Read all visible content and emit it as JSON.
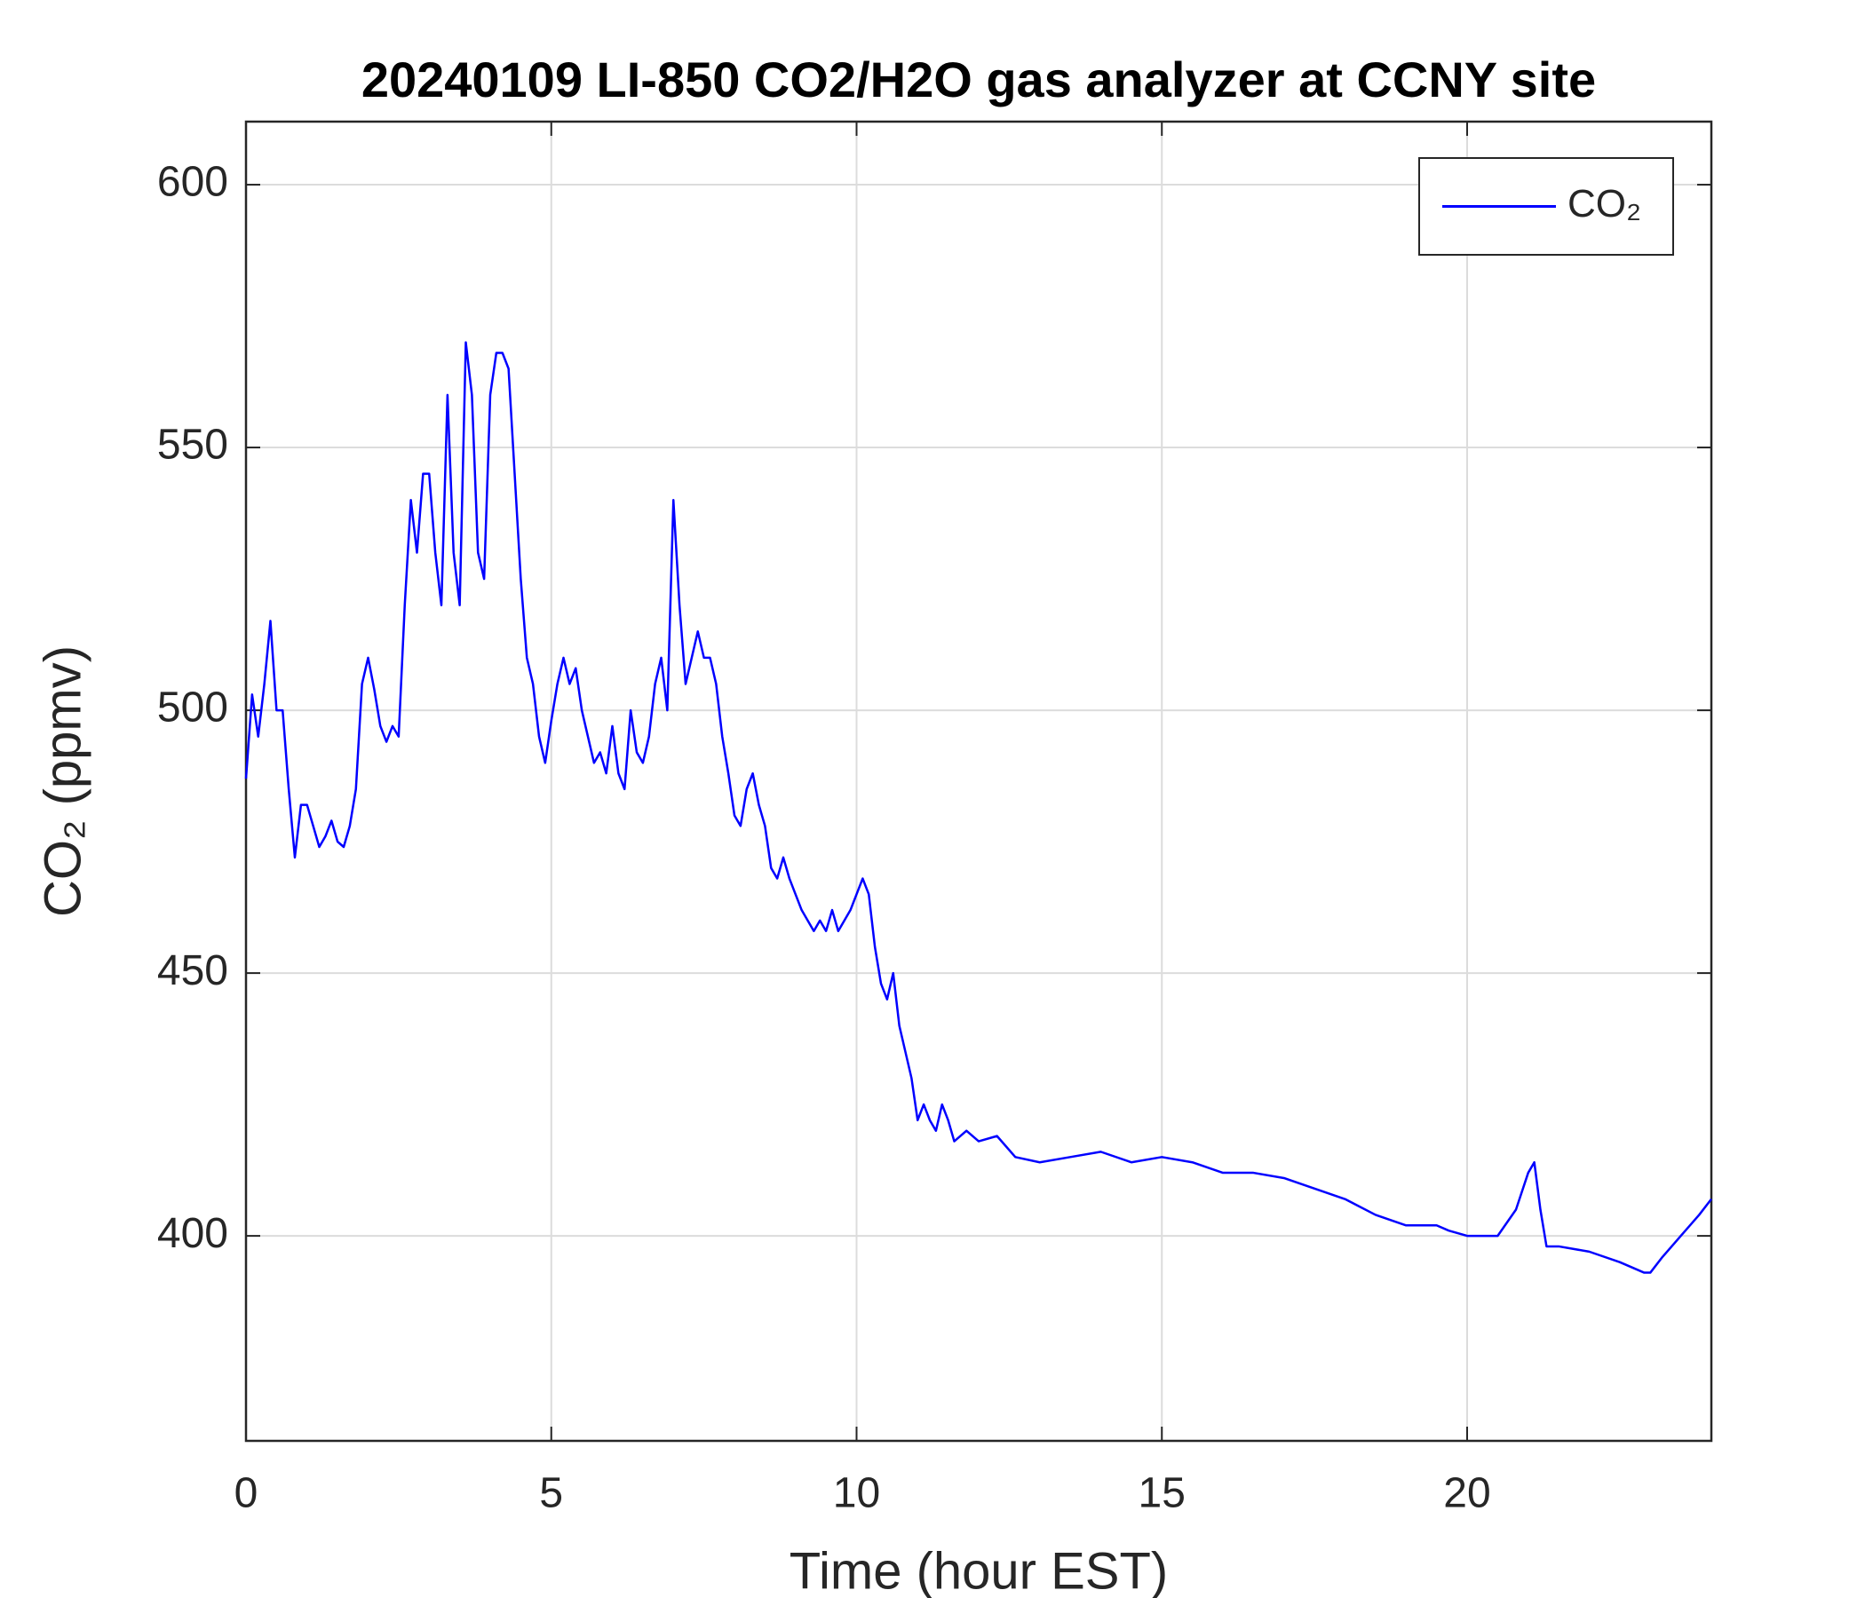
{
  "chart_data": {
    "type": "line",
    "title": "20240109 LI-850 CO2/H2O gas analyzer at CCNY site",
    "x_label": "Time (hour EST)",
    "y_label": "CO₂ (ppmv)",
    "x": [
      0,
      0.1,
      0.2,
      0.3,
      0.4,
      0.5,
      0.6,
      0.7,
      0.8,
      0.9,
      1.0,
      1.1,
      1.2,
      1.3,
      1.4,
      1.5,
      1.6,
      1.7,
      1.8,
      1.9,
      2.0,
      2.1,
      2.2,
      2.3,
      2.4,
      2.5,
      2.6,
      2.7,
      2.8,
      2.9,
      3.0,
      3.1,
      3.2,
      3.3,
      3.4,
      3.5,
      3.6,
      3.7,
      3.8,
      3.9,
      4.0,
      4.1,
      4.2,
      4.3,
      4.4,
      4.5,
      4.6,
      4.7,
      4.8,
      4.9,
      5.0,
      5.1,
      5.2,
      5.3,
      5.4,
      5.5,
      5.6,
      5.7,
      5.8,
      5.9,
      6.0,
      6.1,
      6.2,
      6.3,
      6.4,
      6.5,
      6.6,
      6.7,
      6.8,
      6.9,
      7.0,
      7.1,
      7.2,
      7.3,
      7.4,
      7.5,
      7.6,
      7.7,
      7.8,
      7.9,
      8.0,
      8.1,
      8.2,
      8.3,
      8.4,
      8.5,
      8.6,
      8.7,
      8.8,
      8.9,
      9.0,
      9.1,
      9.2,
      9.3,
      9.4,
      9.5,
      9.6,
      9.7,
      9.8,
      9.9,
      10.0,
      10.1,
      10.2,
      10.3,
      10.4,
      10.5,
      10.6,
      10.7,
      10.8,
      10.9,
      11.0,
      11.1,
      11.2,
      11.3,
      11.4,
      11.5,
      11.6,
      11.8,
      12.0,
      12.3,
      12.6,
      13.0,
      13.5,
      14.0,
      14.5,
      15.0,
      15.5,
      16.0,
      16.5,
      17.0,
      17.5,
      18.0,
      18.5,
      19.0,
      19.5,
      19.7,
      20.0,
      20.5,
      20.8,
      21.0,
      21.1,
      21.2,
      21.3,
      21.5,
      22.0,
      22.5,
      22.9,
      23.0,
      23.2,
      23.5,
      23.8,
      24.0
    ],
    "series": [
      {
        "name": "CO₂",
        "color": "#0000ff",
        "values": [
          487,
          503,
          495,
          505,
          517,
          500,
          500,
          485,
          472,
          482,
          482,
          478,
          474,
          476,
          479,
          475,
          474,
          478,
          485,
          505,
          510,
          504,
          497,
          494,
          497,
          495,
          520,
          540,
          530,
          545,
          545,
          530,
          520,
          560,
          530,
          520,
          570,
          560,
          530,
          525,
          560,
          568,
          568,
          565,
          545,
          525,
          510,
          505,
          495,
          490,
          498,
          505,
          510,
          505,
          508,
          500,
          495,
          490,
          492,
          488,
          497,
          488,
          485,
          500,
          492,
          490,
          495,
          505,
          510,
          500,
          540,
          520,
          505,
          510,
          515,
          510,
          510,
          505,
          495,
          488,
          480,
          478,
          485,
          488,
          482,
          478,
          470,
          468,
          472,
          468,
          465,
          462,
          460,
          458,
          460,
          458,
          462,
          458,
          460,
          462,
          465,
          468,
          465,
          455,
          448,
          445,
          450,
          440,
          435,
          430,
          422,
          425,
          422,
          420,
          425,
          422,
          418,
          420,
          418,
          419,
          415,
          414,
          415,
          416,
          414,
          415,
          414,
          412,
          412,
          411,
          409,
          407,
          404,
          402,
          402,
          401,
          400,
          400,
          405,
          412,
          414,
          405,
          398,
          398,
          397,
          395,
          393,
          393,
          396,
          400,
          404,
          407
        ]
      }
    ],
    "xlim": [
      0,
      24
    ],
    "xticks": [
      0,
      5,
      10,
      15,
      20
    ],
    "ylim": [
      361,
      612
    ],
    "yticks": [
      400,
      450,
      500,
      550,
      600
    ],
    "grid": true,
    "legend": "northeast"
  }
}
